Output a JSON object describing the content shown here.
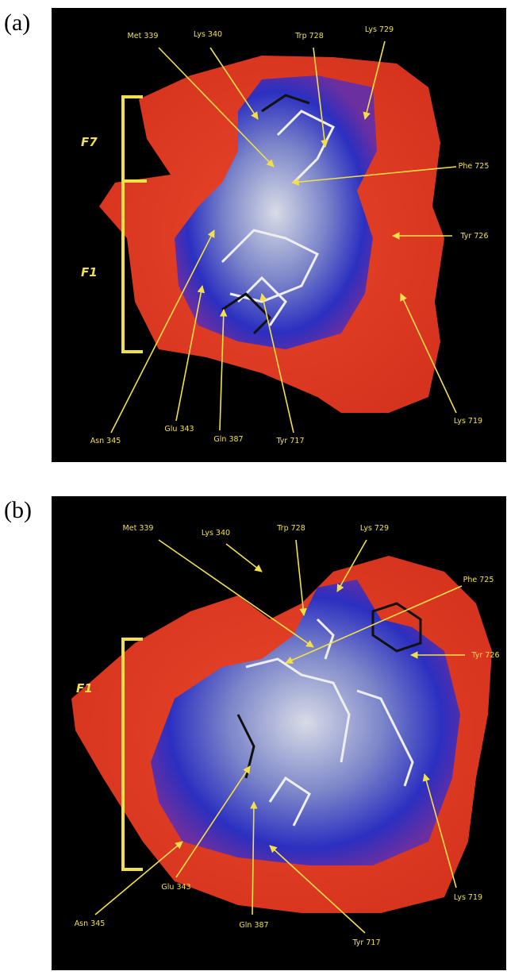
{
  "panels": [
    {
      "label": "(a)",
      "regions": [
        "F7",
        "F1"
      ],
      "residues": [
        "Met 339",
        "Lys 340",
        "Trp 728",
        "Lys 729",
        "Phe 725",
        "Tyr 726",
        "Lys 719",
        "Tyr 717",
        "Gln 387",
        "Glu 343",
        "Asn 345"
      ]
    },
    {
      "label": "(b)",
      "regions": [
        "F1"
      ],
      "residues": [
        "Met 339",
        "Lys 340",
        "Trp 728",
        "Lys 729",
        "Phe 725",
        "Tyr 726",
        "Lys 719",
        "Tyr 717",
        "Gln 387",
        "Glu 343",
        "Asn 345"
      ]
    }
  ]
}
